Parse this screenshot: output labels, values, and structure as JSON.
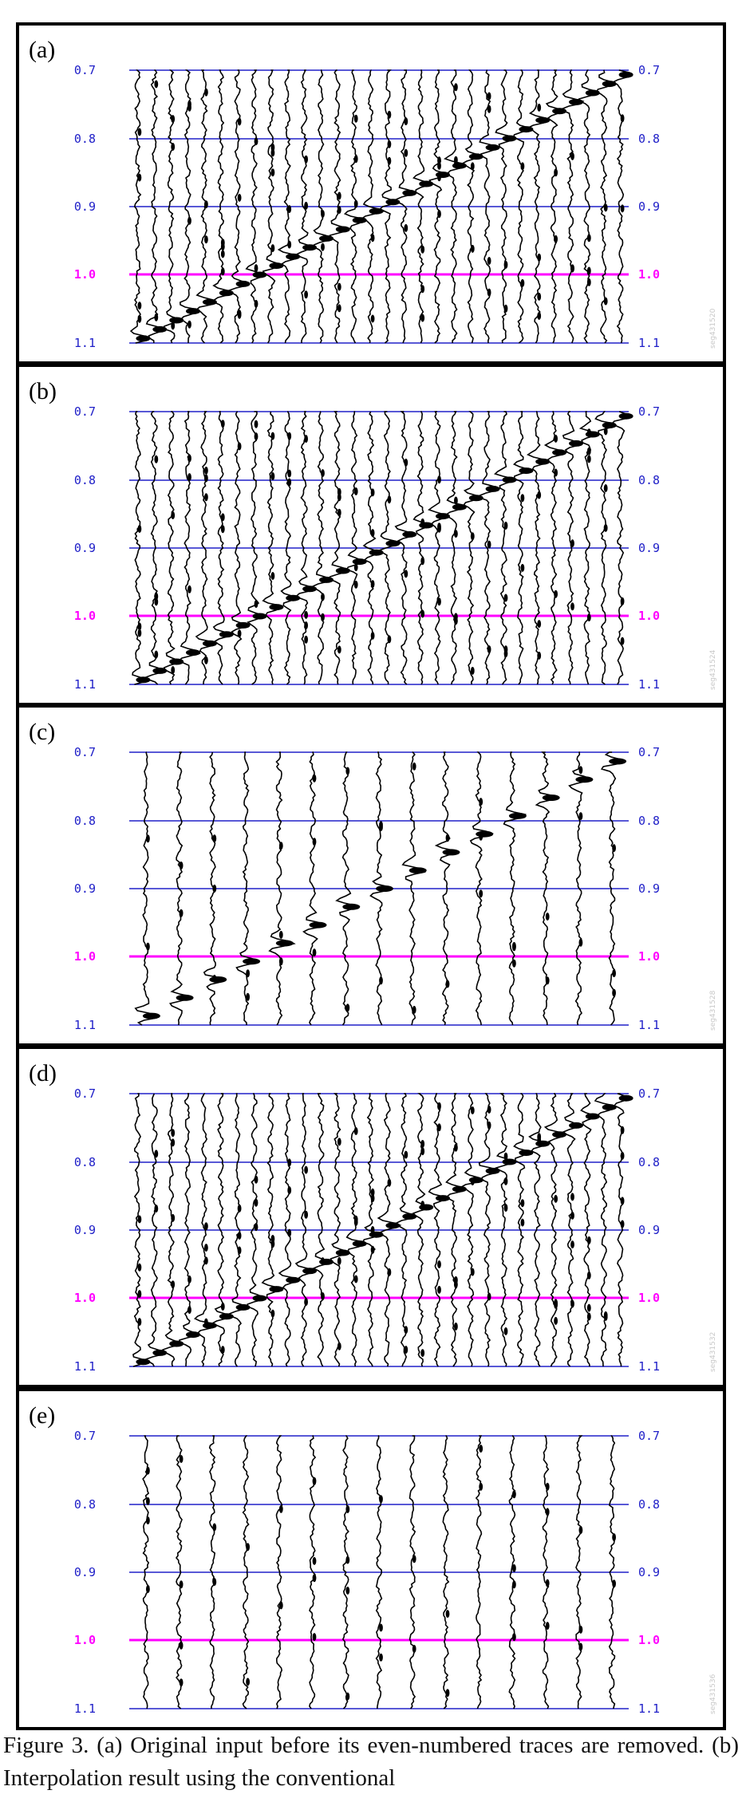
{
  "colors": {
    "grid_line": "#2020c8",
    "highlight_line": "#ff00ff",
    "trace": "#000000",
    "border": "#000000"
  },
  "panels": [
    {
      "label": "(a)",
      "traces": 30,
      "event": true,
      "watermark": "seg431520"
    },
    {
      "label": "(b)",
      "traces": 30,
      "event": true,
      "watermark": "seg431524"
    },
    {
      "label": "(c)",
      "traces": 15,
      "event": true,
      "watermark": "seg431528"
    },
    {
      "label": "(d)",
      "traces": 30,
      "event": true,
      "watermark": "seg431532"
    },
    {
      "label": "(e)",
      "traces": 15,
      "event": false,
      "watermark": "seg431536"
    }
  ],
  "time_ticks": [
    "0.7",
    "0.8",
    "0.9",
    "1.0",
    "1.1"
  ],
  "highlight_tick": "1.0",
  "caption": "Figure 3. (a) Original input before its even-numbered traces are removed. (b) Interpolation result using the conventional"
}
